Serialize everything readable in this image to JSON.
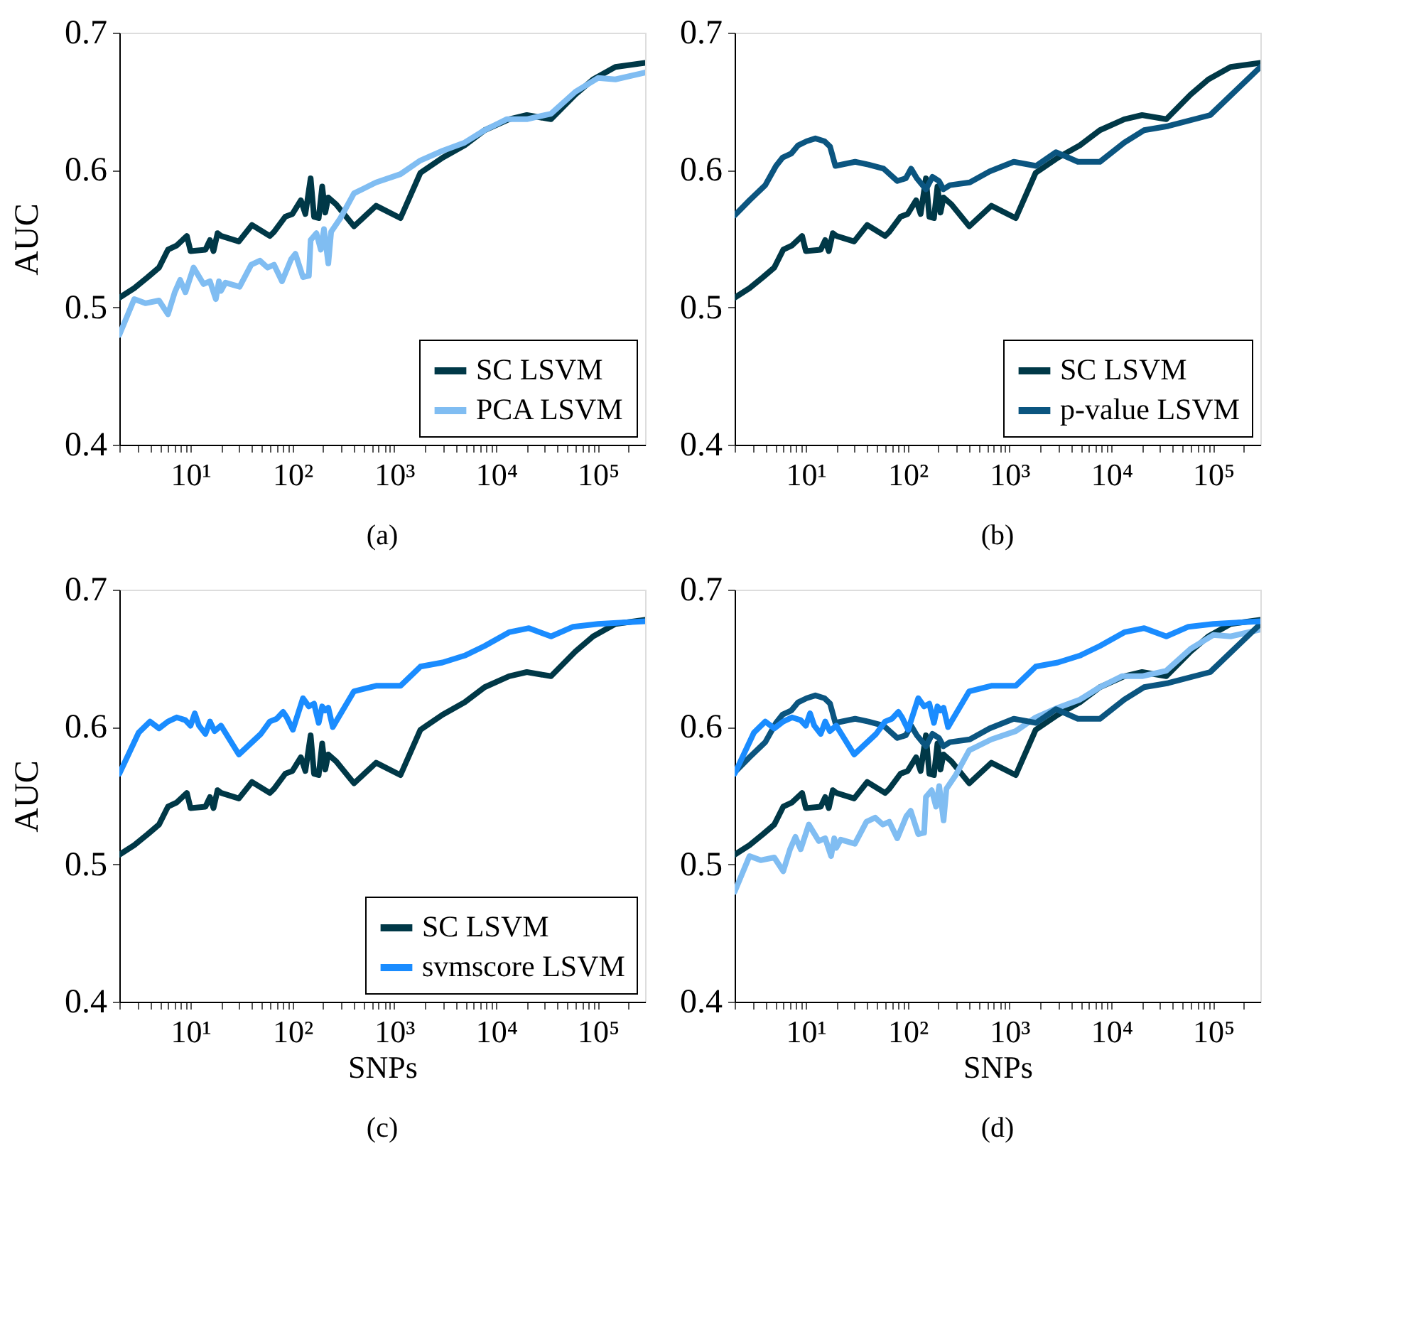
{
  "chart_data": [
    {
      "type": "line",
      "ylabel": "AUC",
      "annotations": [
        "(a)"
      ],
      "xlim": [
        2,
        290000
      ],
      "ylim": [
        0.4,
        0.7
      ],
      "yticks": [
        0.4,
        0.5,
        0.6,
        0.7
      ],
      "log": "x",
      "legend": "bottom right",
      "grid": false,
      "line_style": "solid",
      "xticks": [
        {
          "value": 2,
          "label": null
        },
        {
          "value": 3,
          "label": null
        },
        {
          "value": 4,
          "label": null
        },
        {
          "value": 5,
          "label": null
        },
        {
          "value": 6,
          "label": null
        },
        {
          "value": 7,
          "label": null
        },
        {
          "value": 8,
          "label": null
        },
        {
          "value": 9,
          "label": null
        },
        {
          "value": 10,
          "label": "10¹"
        },
        {
          "value": 20,
          "label": null
        },
        {
          "value": 30,
          "label": null
        },
        {
          "value": 40,
          "label": null
        },
        {
          "value": 50,
          "label": null
        },
        {
          "value": 60,
          "label": null
        },
        {
          "value": 70,
          "label": null
        },
        {
          "value": 80,
          "label": null
        },
        {
          "value": 90,
          "label": null
        },
        {
          "value": 100,
          "label": "10²"
        },
        {
          "value": 200,
          "label": null
        },
        {
          "value": 300,
          "label": null
        },
        {
          "value": 400,
          "label": null
        },
        {
          "value": 500,
          "label": null
        },
        {
          "value": 600,
          "label": null
        },
        {
          "value": 700,
          "label": null
        },
        {
          "value": 800,
          "label": null
        },
        {
          "value": 900,
          "label": null
        },
        {
          "value": 1000,
          "label": "10³"
        },
        {
          "value": 2000,
          "label": null
        },
        {
          "value": 3000,
          "label": null
        },
        {
          "value": 4000,
          "label": null
        },
        {
          "value": 5000,
          "label": null
        },
        {
          "value": 6000,
          "label": null
        },
        {
          "value": 7000,
          "label": null
        },
        {
          "value": 8000,
          "label": null
        },
        {
          "value": 9000,
          "label": null
        },
        {
          "value": 10000,
          "label": "10⁴"
        },
        {
          "value": 20000,
          "label": null
        },
        {
          "value": 30000,
          "label": null
        },
        {
          "value": 40000,
          "label": null
        },
        {
          "value": 50000,
          "label": null
        },
        {
          "value": 60000,
          "label": null
        },
        {
          "value": 70000,
          "label": null
        },
        {
          "value": 80000,
          "label": null
        },
        {
          "value": 90000,
          "label": null
        },
        {
          "value": 100000,
          "label": "10⁵"
        },
        {
          "value": 200000,
          "label": null
        }
      ],
      "series": [
        {
          "name": "SC LSVM",
          "color": "#003847",
          "x": [
            2,
            2.8,
            3.8,
            4.9,
            6.0,
            7.3,
            9.2,
            10,
            14,
            15.5,
            16.8,
            18.4,
            20,
            29.8,
            40,
            60,
            66,
            85,
            100,
            121,
            134,
            151,
            163,
            181,
            196,
            210,
            225,
            269,
            402,
            663,
            1150,
            1806,
            2980,
            4910,
            7710,
            13400,
            20000,
            34600,
            60000,
            89500,
            148000,
            290000
          ],
          "values": [
            0.507,
            0.514,
            0.522,
            0.529,
            0.542,
            0.545,
            0.552,
            0.541,
            0.542,
            0.549,
            0.541,
            0.554,
            0.552,
            0.548,
            0.56,
            0.552,
            0.555,
            0.566,
            0.568,
            0.578,
            0.568,
            0.594,
            0.566,
            0.565,
            0.588,
            0.569,
            0.58,
            0.575,
            0.559,
            0.574,
            0.565,
            0.598,
            0.609,
            0.618,
            0.629,
            0.637,
            0.64,
            0.637,
            0.655,
            0.666,
            0.675,
            0.678
          ]
        },
        {
          "name": "PCA LSVM",
          "color": "#80bdf2",
          "x": [
            2,
            2.8,
            3.6,
            4.9,
            6.0,
            7.0,
            7.9,
            8.9,
            10.7,
            13.4,
            15.5,
            17.7,
            19,
            19.9,
            22,
            30.3,
            39.4,
            48,
            57,
            66,
            79,
            97,
            107,
            127,
            145,
            151,
            172,
            190,
            204,
            225,
            240,
            296,
            402,
            663,
            1150,
            1806,
            2980,
            4910,
            7710,
            12700,
            20000,
            34600,
            60000,
            100000,
            148000,
            290000
          ],
          "values": [
            0.48,
            0.506,
            0.503,
            0.505,
            0.495,
            0.511,
            0.52,
            0.511,
            0.529,
            0.517,
            0.519,
            0.506,
            0.519,
            0.512,
            0.518,
            0.515,
            0.531,
            0.534,
            0.529,
            0.531,
            0.519,
            0.535,
            0.539,
            0.522,
            0.523,
            0.549,
            0.554,
            0.542,
            0.557,
            0.532,
            0.555,
            0.565,
            0.583,
            0.591,
            0.597,
            0.607,
            0.614,
            0.62,
            0.629,
            0.637,
            0.637,
            0.641,
            0.657,
            0.667,
            0.666,
            0.671
          ]
        }
      ]
    },
    {
      "type": "line",
      "annotations": [
        "(b)"
      ],
      "xlim": [
        2,
        290000
      ],
      "ylim": [
        0.4,
        0.7
      ],
      "yticks": [
        0.4,
        0.5,
        0.6,
        0.7
      ],
      "log": "x",
      "legend": "bottom right",
      "grid": false,
      "line_style": "solid",
      "xticks": [
        {
          "value": 2,
          "label": null
        },
        {
          "value": 3,
          "label": null
        },
        {
          "value": 4,
          "label": null
        },
        {
          "value": 5,
          "label": null
        },
        {
          "value": 6,
          "label": null
        },
        {
          "value": 7,
          "label": null
        },
        {
          "value": 8,
          "label": null
        },
        {
          "value": 9,
          "label": null
        },
        {
          "value": 10,
          "label": "10¹"
        },
        {
          "value": 20,
          "label": null
        },
        {
          "value": 30,
          "label": null
        },
        {
          "value": 40,
          "label": null
        },
        {
          "value": 50,
          "label": null
        },
        {
          "value": 60,
          "label": null
        },
        {
          "value": 70,
          "label": null
        },
        {
          "value": 80,
          "label": null
        },
        {
          "value": 90,
          "label": null
        },
        {
          "value": 100,
          "label": "10²"
        },
        {
          "value": 200,
          "label": null
        },
        {
          "value": 300,
          "label": null
        },
        {
          "value": 400,
          "label": null
        },
        {
          "value": 500,
          "label": null
        },
        {
          "value": 600,
          "label": null
        },
        {
          "value": 700,
          "label": null
        },
        {
          "value": 800,
          "label": null
        },
        {
          "value": 900,
          "label": null
        },
        {
          "value": 1000,
          "label": "10³"
        },
        {
          "value": 2000,
          "label": null
        },
        {
          "value": 3000,
          "label": null
        },
        {
          "value": 4000,
          "label": null
        },
        {
          "value": 5000,
          "label": null
        },
        {
          "value": 6000,
          "label": null
        },
        {
          "value": 7000,
          "label": null
        },
        {
          "value": 8000,
          "label": null
        },
        {
          "value": 9000,
          "label": null
        },
        {
          "value": 10000,
          "label": "10⁴"
        },
        {
          "value": 20000,
          "label": null
        },
        {
          "value": 30000,
          "label": null
        },
        {
          "value": 40000,
          "label": null
        },
        {
          "value": 50000,
          "label": null
        },
        {
          "value": 60000,
          "label": null
        },
        {
          "value": 70000,
          "label": null
        },
        {
          "value": 80000,
          "label": null
        },
        {
          "value": 90000,
          "label": null
        },
        {
          "value": 100000,
          "label": "10⁵"
        },
        {
          "value": 200000,
          "label": null
        }
      ],
      "series": [
        {
          "name": "SC LSVM",
          "color": "#003847",
          "x": [
            2,
            2.8,
            3.8,
            4.9,
            6.0,
            7.3,
            9.2,
            10,
            14,
            15.5,
            16.8,
            18.4,
            20,
            29.8,
            40,
            60,
            66,
            85,
            100,
            121,
            134,
            151,
            163,
            181,
            196,
            210,
            225,
            269,
            402,
            663,
            1150,
            1806,
            2980,
            4910,
            7710,
            13400,
            20000,
            34600,
            60000,
            89500,
            148000,
            290000
          ],
          "values": [
            0.507,
            0.514,
            0.522,
            0.529,
            0.542,
            0.545,
            0.552,
            0.541,
            0.542,
            0.549,
            0.541,
            0.554,
            0.552,
            0.548,
            0.56,
            0.552,
            0.555,
            0.566,
            0.568,
            0.578,
            0.568,
            0.594,
            0.566,
            0.565,
            0.588,
            0.569,
            0.58,
            0.575,
            0.559,
            0.574,
            0.565,
            0.598,
            0.609,
            0.618,
            0.629,
            0.637,
            0.64,
            0.637,
            0.655,
            0.666,
            0.675,
            0.678
          ]
        },
        {
          "name": "p-value LSVM",
          "color": "#0b5580",
          "x": [
            2,
            2.8,
            4.0,
            5.1,
            5.9,
            7.2,
            8.4,
            10.2,
            12.4,
            15.2,
            17.3,
            19.5,
            30.5,
            41,
            58,
            79,
            96,
            108,
            123,
            151,
            175,
            203,
            224,
            260,
            407,
            638,
            1100,
            1820,
            2850,
            4690,
            7710,
            13400,
            20900,
            36100,
            93300,
            290000
          ],
          "values": [
            0.567,
            0.578,
            0.589,
            0.603,
            0.609,
            0.612,
            0.618,
            0.621,
            0.623,
            0.621,
            0.617,
            0.603,
            0.606,
            0.604,
            0.601,
            0.592,
            0.594,
            0.601,
            0.594,
            0.586,
            0.595,
            0.592,
            0.586,
            0.589,
            0.591,
            0.599,
            0.606,
            0.603,
            0.613,
            0.606,
            0.606,
            0.62,
            0.629,
            0.632,
            0.64,
            0.675
          ]
        }
      ]
    },
    {
      "type": "line",
      "xlabel": "SNPs",
      "ylabel": "AUC",
      "annotations": [
        "(c)"
      ],
      "xlim": [
        2,
        290000
      ],
      "ylim": [
        0.4,
        0.7
      ],
      "yticks": [
        0.4,
        0.5,
        0.6,
        0.7
      ],
      "log": "x",
      "legend": "bottom right",
      "grid": false,
      "line_style": "solid",
      "xticks": [
        {
          "value": 2,
          "label": null
        },
        {
          "value": 3,
          "label": null
        },
        {
          "value": 4,
          "label": null
        },
        {
          "value": 5,
          "label": null
        },
        {
          "value": 6,
          "label": null
        },
        {
          "value": 7,
          "label": null
        },
        {
          "value": 8,
          "label": null
        },
        {
          "value": 9,
          "label": null
        },
        {
          "value": 10,
          "label": "10¹"
        },
        {
          "value": 20,
          "label": null
        },
        {
          "value": 30,
          "label": null
        },
        {
          "value": 40,
          "label": null
        },
        {
          "value": 50,
          "label": null
        },
        {
          "value": 60,
          "label": null
        },
        {
          "value": 70,
          "label": null
        },
        {
          "value": 80,
          "label": null
        },
        {
          "value": 90,
          "label": null
        },
        {
          "value": 100,
          "label": "10²"
        },
        {
          "value": 200,
          "label": null
        },
        {
          "value": 300,
          "label": null
        },
        {
          "value": 400,
          "label": null
        },
        {
          "value": 500,
          "label": null
        },
        {
          "value": 600,
          "label": null
        },
        {
          "value": 700,
          "label": null
        },
        {
          "value": 800,
          "label": null
        },
        {
          "value": 900,
          "label": null
        },
        {
          "value": 1000,
          "label": "10³"
        },
        {
          "value": 2000,
          "label": null
        },
        {
          "value": 3000,
          "label": null
        },
        {
          "value": 4000,
          "label": null
        },
        {
          "value": 5000,
          "label": null
        },
        {
          "value": 6000,
          "label": null
        },
        {
          "value": 7000,
          "label": null
        },
        {
          "value": 8000,
          "label": null
        },
        {
          "value": 9000,
          "label": null
        },
        {
          "value": 10000,
          "label": "10⁴"
        },
        {
          "value": 20000,
          "label": null
        },
        {
          "value": 30000,
          "label": null
        },
        {
          "value": 40000,
          "label": null
        },
        {
          "value": 50000,
          "label": null
        },
        {
          "value": 60000,
          "label": null
        },
        {
          "value": 70000,
          "label": null
        },
        {
          "value": 80000,
          "label": null
        },
        {
          "value": 90000,
          "label": null
        },
        {
          "value": 100000,
          "label": "10⁵"
        },
        {
          "value": 200000,
          "label": null
        }
      ],
      "series": [
        {
          "name": "SC LSVM",
          "color": "#003847",
          "x": [
            2,
            2.8,
            3.8,
            4.9,
            6.0,
            7.3,
            9.2,
            10,
            14,
            15.5,
            16.8,
            18.4,
            20,
            29.8,
            40,
            60,
            66,
            85,
            100,
            121,
            134,
            151,
            163,
            181,
            196,
            210,
            225,
            269,
            402,
            663,
            1150,
            1806,
            2980,
            4910,
            7710,
            13400,
            20000,
            34600,
            60000,
            89500,
            148000,
            290000
          ],
          "values": [
            0.507,
            0.514,
            0.522,
            0.529,
            0.542,
            0.545,
            0.552,
            0.541,
            0.542,
            0.549,
            0.541,
            0.554,
            0.552,
            0.548,
            0.56,
            0.552,
            0.555,
            0.566,
            0.568,
            0.578,
            0.568,
            0.594,
            0.566,
            0.565,
            0.588,
            0.569,
            0.58,
            0.575,
            0.559,
            0.574,
            0.565,
            0.598,
            0.609,
            0.618,
            0.629,
            0.637,
            0.64,
            0.637,
            0.655,
            0.666,
            0.675,
            0.678
          ]
        },
        {
          "name": "svmscore LSVM",
          "color": "#1a8cff",
          "x": [
            2,
            3.1,
            4.0,
            4.9,
            6.0,
            7.3,
            8.9,
            10,
            11,
            12.1,
            14,
            15.5,
            17.2,
            19.9,
            29.8,
            49,
            60,
            70,
            81,
            88,
            101,
            127,
            145,
            163,
            181,
            196,
            210,
            225,
            249,
            402,
            663,
            1150,
            1806,
            2980,
            4910,
            7710,
            13400,
            21000,
            34600,
            57100,
            100000,
            290000
          ],
          "values": [
            0.566,
            0.596,
            0.604,
            0.599,
            0.604,
            0.607,
            0.605,
            0.601,
            0.61,
            0.601,
            0.595,
            0.604,
            0.597,
            0.601,
            0.58,
            0.595,
            0.604,
            0.606,
            0.611,
            0.607,
            0.598,
            0.621,
            0.615,
            0.617,
            0.603,
            0.615,
            0.612,
            0.614,
            0.6,
            0.626,
            0.63,
            0.63,
            0.644,
            0.647,
            0.652,
            0.659,
            0.669,
            0.672,
            0.666,
            0.673,
            0.675,
            0.677
          ]
        }
      ]
    },
    {
      "type": "line",
      "xlabel": "SNPs",
      "annotations": [
        "(d)"
      ],
      "xlim": [
        2,
        290000
      ],
      "ylim": [
        0.4,
        0.7
      ],
      "yticks": [
        0.4,
        0.5,
        0.6,
        0.7
      ],
      "log": "x",
      "grid": false,
      "line_style": "solid",
      "xticks": [
        {
          "value": 2,
          "label": null
        },
        {
          "value": 3,
          "label": null
        },
        {
          "value": 4,
          "label": null
        },
        {
          "value": 5,
          "label": null
        },
        {
          "value": 6,
          "label": null
        },
        {
          "value": 7,
          "label": null
        },
        {
          "value": 8,
          "label": null
        },
        {
          "value": 9,
          "label": null
        },
        {
          "value": 10,
          "label": "10¹"
        },
        {
          "value": 20,
          "label": null
        },
        {
          "value": 30,
          "label": null
        },
        {
          "value": 40,
          "label": null
        },
        {
          "value": 50,
          "label": null
        },
        {
          "value": 60,
          "label": null
        },
        {
          "value": 70,
          "label": null
        },
        {
          "value": 80,
          "label": null
        },
        {
          "value": 90,
          "label": null
        },
        {
          "value": 100,
          "label": "10²"
        },
        {
          "value": 200,
          "label": null
        },
        {
          "value": 300,
          "label": null
        },
        {
          "value": 400,
          "label": null
        },
        {
          "value": 500,
          "label": null
        },
        {
          "value": 600,
          "label": null
        },
        {
          "value": 700,
          "label": null
        },
        {
          "value": 800,
          "label": null
        },
        {
          "value": 900,
          "label": null
        },
        {
          "value": 1000,
          "label": "10³"
        },
        {
          "value": 2000,
          "label": null
        },
        {
          "value": 3000,
          "label": null
        },
        {
          "value": 4000,
          "label": null
        },
        {
          "value": 5000,
          "label": null
        },
        {
          "value": 6000,
          "label": null
        },
        {
          "value": 7000,
          "label": null
        },
        {
          "value": 8000,
          "label": null
        },
        {
          "value": 9000,
          "label": null
        },
        {
          "value": 10000,
          "label": "10⁴"
        },
        {
          "value": 20000,
          "label": null
        },
        {
          "value": 30000,
          "label": null
        },
        {
          "value": 40000,
          "label": null
        },
        {
          "value": 50000,
          "label": null
        },
        {
          "value": 60000,
          "label": null
        },
        {
          "value": 70000,
          "label": null
        },
        {
          "value": 80000,
          "label": null
        },
        {
          "value": 90000,
          "label": null
        },
        {
          "value": 100000,
          "label": "10⁵"
        },
        {
          "value": 200000,
          "label": null
        }
      ],
      "series": [
        {
          "color": "#003847",
          "x": [
            2,
            2.8,
            3.8,
            4.9,
            6.0,
            7.3,
            9.2,
            10,
            14,
            15.5,
            16.8,
            18.4,
            20,
            29.8,
            40,
            60,
            66,
            85,
            100,
            121,
            134,
            151,
            163,
            181,
            196,
            210,
            225,
            269,
            402,
            663,
            1150,
            1806,
            2980,
            4910,
            7710,
            13400,
            20000,
            34600,
            60000,
            89500,
            148000,
            290000
          ],
          "values": [
            0.507,
            0.514,
            0.522,
            0.529,
            0.542,
            0.545,
            0.552,
            0.541,
            0.542,
            0.549,
            0.541,
            0.554,
            0.552,
            0.548,
            0.56,
            0.552,
            0.555,
            0.566,
            0.568,
            0.578,
            0.568,
            0.594,
            0.566,
            0.565,
            0.588,
            0.569,
            0.58,
            0.575,
            0.559,
            0.574,
            0.565,
            0.598,
            0.609,
            0.618,
            0.629,
            0.637,
            0.64,
            0.637,
            0.655,
            0.666,
            0.675,
            0.678
          ]
        },
        {
          "color": "#80bdf2",
          "x": [
            2,
            2.8,
            3.6,
            4.9,
            6.0,
            7.0,
            7.9,
            8.9,
            10.7,
            13.4,
            15.5,
            17.7,
            19,
            19.9,
            22,
            30.3,
            39.4,
            48,
            57,
            66,
            79,
            97,
            107,
            127,
            145,
            151,
            172,
            190,
            204,
            225,
            240,
            296,
            402,
            663,
            1150,
            1806,
            2980,
            4910,
            7710,
            12700,
            20000,
            34600,
            60000,
            100000,
            148000,
            290000
          ],
          "values": [
            0.48,
            0.506,
            0.503,
            0.505,
            0.495,
            0.511,
            0.52,
            0.511,
            0.529,
            0.517,
            0.519,
            0.506,
            0.519,
            0.512,
            0.518,
            0.515,
            0.531,
            0.534,
            0.529,
            0.531,
            0.519,
            0.535,
            0.539,
            0.522,
            0.523,
            0.549,
            0.554,
            0.542,
            0.557,
            0.532,
            0.555,
            0.565,
            0.583,
            0.591,
            0.597,
            0.607,
            0.614,
            0.62,
            0.629,
            0.637,
            0.637,
            0.641,
            0.657,
            0.667,
            0.666,
            0.671
          ]
        },
        {
          "color": "#0b5580",
          "x": [
            2,
            2.8,
            4.0,
            5.1,
            5.9,
            7.2,
            8.4,
            10.2,
            12.4,
            15.2,
            17.3,
            19.5,
            30.5,
            41,
            58,
            79,
            96,
            108,
            123,
            151,
            175,
            203,
            224,
            260,
            407,
            638,
            1100,
            1820,
            2850,
            4690,
            7710,
            13400,
            20900,
            36100,
            93300,
            290000
          ],
          "values": [
            0.567,
            0.578,
            0.589,
            0.603,
            0.609,
            0.612,
            0.618,
            0.621,
            0.623,
            0.621,
            0.617,
            0.603,
            0.606,
            0.604,
            0.601,
            0.592,
            0.594,
            0.601,
            0.594,
            0.586,
            0.595,
            0.592,
            0.586,
            0.589,
            0.591,
            0.599,
            0.606,
            0.603,
            0.613,
            0.606,
            0.606,
            0.62,
            0.629,
            0.632,
            0.64,
            0.675
          ]
        },
        {
          "color": "#1a8cff",
          "x": [
            2,
            3.1,
            4.0,
            4.9,
            6.0,
            7.3,
            8.9,
            10,
            11,
            12.1,
            14,
            15.5,
            17.2,
            19.9,
            29.8,
            49,
            60,
            70,
            81,
            88,
            101,
            127,
            145,
            163,
            181,
            196,
            210,
            225,
            249,
            402,
            663,
            1150,
            1806,
            2980,
            4910,
            7710,
            13400,
            21000,
            34600,
            57100,
            100000,
            290000
          ],
          "values": [
            0.566,
            0.596,
            0.604,
            0.599,
            0.604,
            0.607,
            0.605,
            0.601,
            0.61,
            0.601,
            0.595,
            0.604,
            0.597,
            0.601,
            0.58,
            0.595,
            0.604,
            0.606,
            0.611,
            0.607,
            0.598,
            0.621,
            0.615,
            0.617,
            0.603,
            0.615,
            0.612,
            0.614,
            0.6,
            0.626,
            0.63,
            0.63,
            0.644,
            0.647,
            0.652,
            0.659,
            0.669,
            0.672,
            0.666,
            0.673,
            0.675,
            0.677
          ]
        }
      ]
    }
  ]
}
